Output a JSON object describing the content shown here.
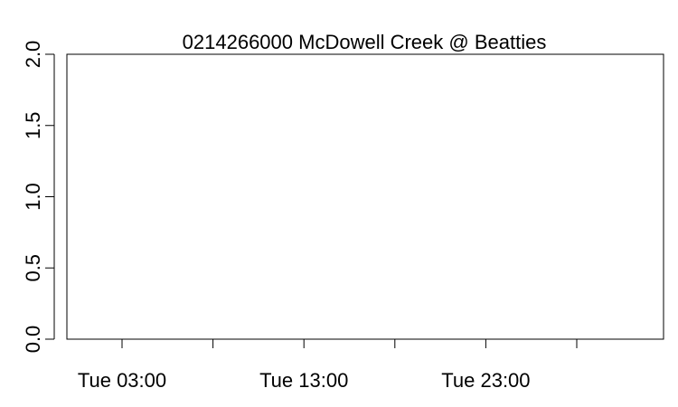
{
  "chart_data": {
    "type": "line",
    "title": "0214266000 McDowell Creek @ Beatties",
    "xlabel": "",
    "ylabel": "",
    "ylim": [
      0,
      2
    ],
    "y_ticks": [
      {
        "value": 0.0,
        "label": "0.0"
      },
      {
        "value": 0.5,
        "label": "0.5"
      },
      {
        "value": 1.0,
        "label": "1.0"
      },
      {
        "value": 1.5,
        "label": "1.5"
      },
      {
        "value": 2.0,
        "label": "2.0"
      }
    ],
    "x_ticks": [
      {
        "label": "Tue 03:00"
      },
      {
        "label": ""
      },
      {
        "label": "Tue 13:00"
      },
      {
        "label": ""
      },
      {
        "label": "Tue 23:00"
      },
      {
        "label": ""
      }
    ],
    "series": [],
    "grid": false,
    "legend": "none"
  },
  "colors": {
    "axis": "#000000",
    "background": "#ffffff"
  }
}
